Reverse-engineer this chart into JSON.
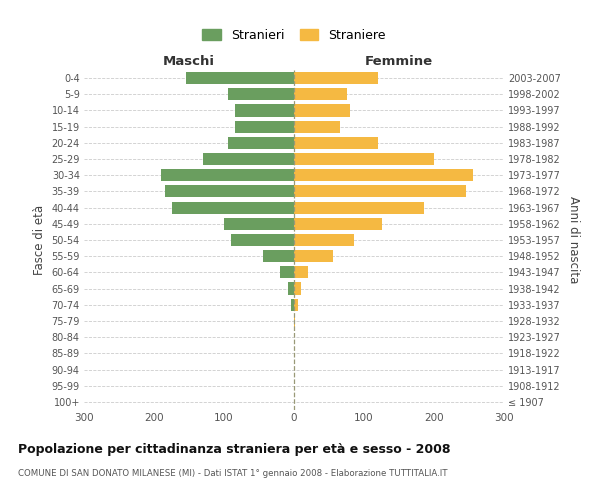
{
  "age_groups": [
    "100+",
    "95-99",
    "90-94",
    "85-89",
    "80-84",
    "75-79",
    "70-74",
    "65-69",
    "60-64",
    "55-59",
    "50-54",
    "45-49",
    "40-44",
    "35-39",
    "30-34",
    "25-29",
    "20-24",
    "15-19",
    "10-14",
    "5-9",
    "0-4"
  ],
  "birth_years": [
    "≤ 1907",
    "1908-1912",
    "1913-1917",
    "1918-1922",
    "1923-1927",
    "1928-1932",
    "1933-1937",
    "1938-1942",
    "1943-1947",
    "1948-1952",
    "1953-1957",
    "1958-1962",
    "1963-1967",
    "1968-1972",
    "1973-1977",
    "1978-1982",
    "1983-1987",
    "1988-1992",
    "1993-1997",
    "1998-2002",
    "2003-2007"
  ],
  "maschi": [
    0,
    0,
    0,
    0,
    0,
    0,
    5,
    8,
    20,
    45,
    90,
    100,
    175,
    185,
    190,
    130,
    95,
    85,
    85,
    95,
    155
  ],
  "femmine": [
    0,
    0,
    0,
    0,
    0,
    2,
    5,
    10,
    20,
    55,
    85,
    125,
    185,
    245,
    255,
    200,
    120,
    65,
    80,
    75,
    120
  ],
  "color_maschi": "#6a9e5f",
  "color_femmine": "#f5b942",
  "title": "Popolazione per cittadinanza straniera per età e sesso - 2008",
  "subtitle": "COMUNE DI SAN DONATO MILANESE (MI) - Dati ISTAT 1° gennaio 2008 - Elaborazione TUTTITALIA.IT",
  "xlabel_left": "Maschi",
  "xlabel_right": "Femmine",
  "ylabel_left": "Fasce di età",
  "ylabel_right": "Anni di nascita",
  "legend_maschi": "Stranieri",
  "legend_femmine": "Straniere",
  "xlim": 300,
  "background_color": "#ffffff",
  "grid_color": "#cccccc"
}
